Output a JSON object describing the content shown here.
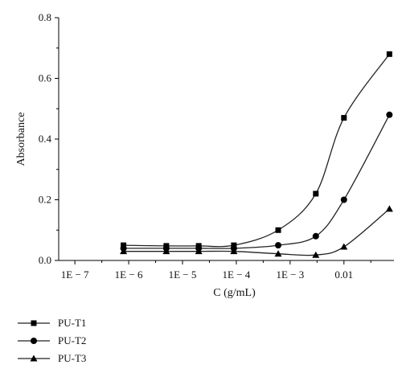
{
  "chart_data": {
    "type": "scatter",
    "xlabel": "C (g/mL)",
    "ylabel": "Absorbance",
    "xscale": "log",
    "xlim": [
      5e-08,
      0.085
    ],
    "ylim": [
      0,
      0.8
    ],
    "x_ticks": [
      {
        "value": 1e-07,
        "label": "1E − 7"
      },
      {
        "value": 1e-06,
        "label": "1E − 6"
      },
      {
        "value": 1e-05,
        "label": "1E − 5"
      },
      {
        "value": 0.0001,
        "label": "1E − 4"
      },
      {
        "value": 0.001,
        "label": "1E − 3"
      },
      {
        "value": 0.01,
        "label": "0.01"
      }
    ],
    "y_ticks": [
      {
        "value": 0.0,
        "label": "0.0"
      },
      {
        "value": 0.2,
        "label": "0.2"
      },
      {
        "value": 0.4,
        "label": "0.4"
      },
      {
        "value": 0.6,
        "label": "0.6"
      },
      {
        "value": 0.8,
        "label": "0.8"
      }
    ],
    "grid": false,
    "legend_position": "bottom-left",
    "x": [
      8e-07,
      5e-06,
      2e-05,
      9e-05,
      0.0006,
      0.003,
      0.01,
      0.07
    ],
    "series": [
      {
        "name": "PU-T1",
        "marker": "square",
        "values": [
          0.05,
          0.048,
          0.048,
          0.05,
          0.1,
          0.22,
          0.47,
          0.68
        ]
      },
      {
        "name": "PU-T2",
        "marker": "circle",
        "values": [
          0.04,
          0.04,
          0.04,
          0.04,
          0.05,
          0.08,
          0.2,
          0.48
        ]
      },
      {
        "name": "PU-T3",
        "marker": "triangle",
        "values": [
          0.03,
          0.03,
          0.03,
          0.03,
          0.022,
          0.018,
          0.045,
          0.17
        ]
      }
    ]
  }
}
